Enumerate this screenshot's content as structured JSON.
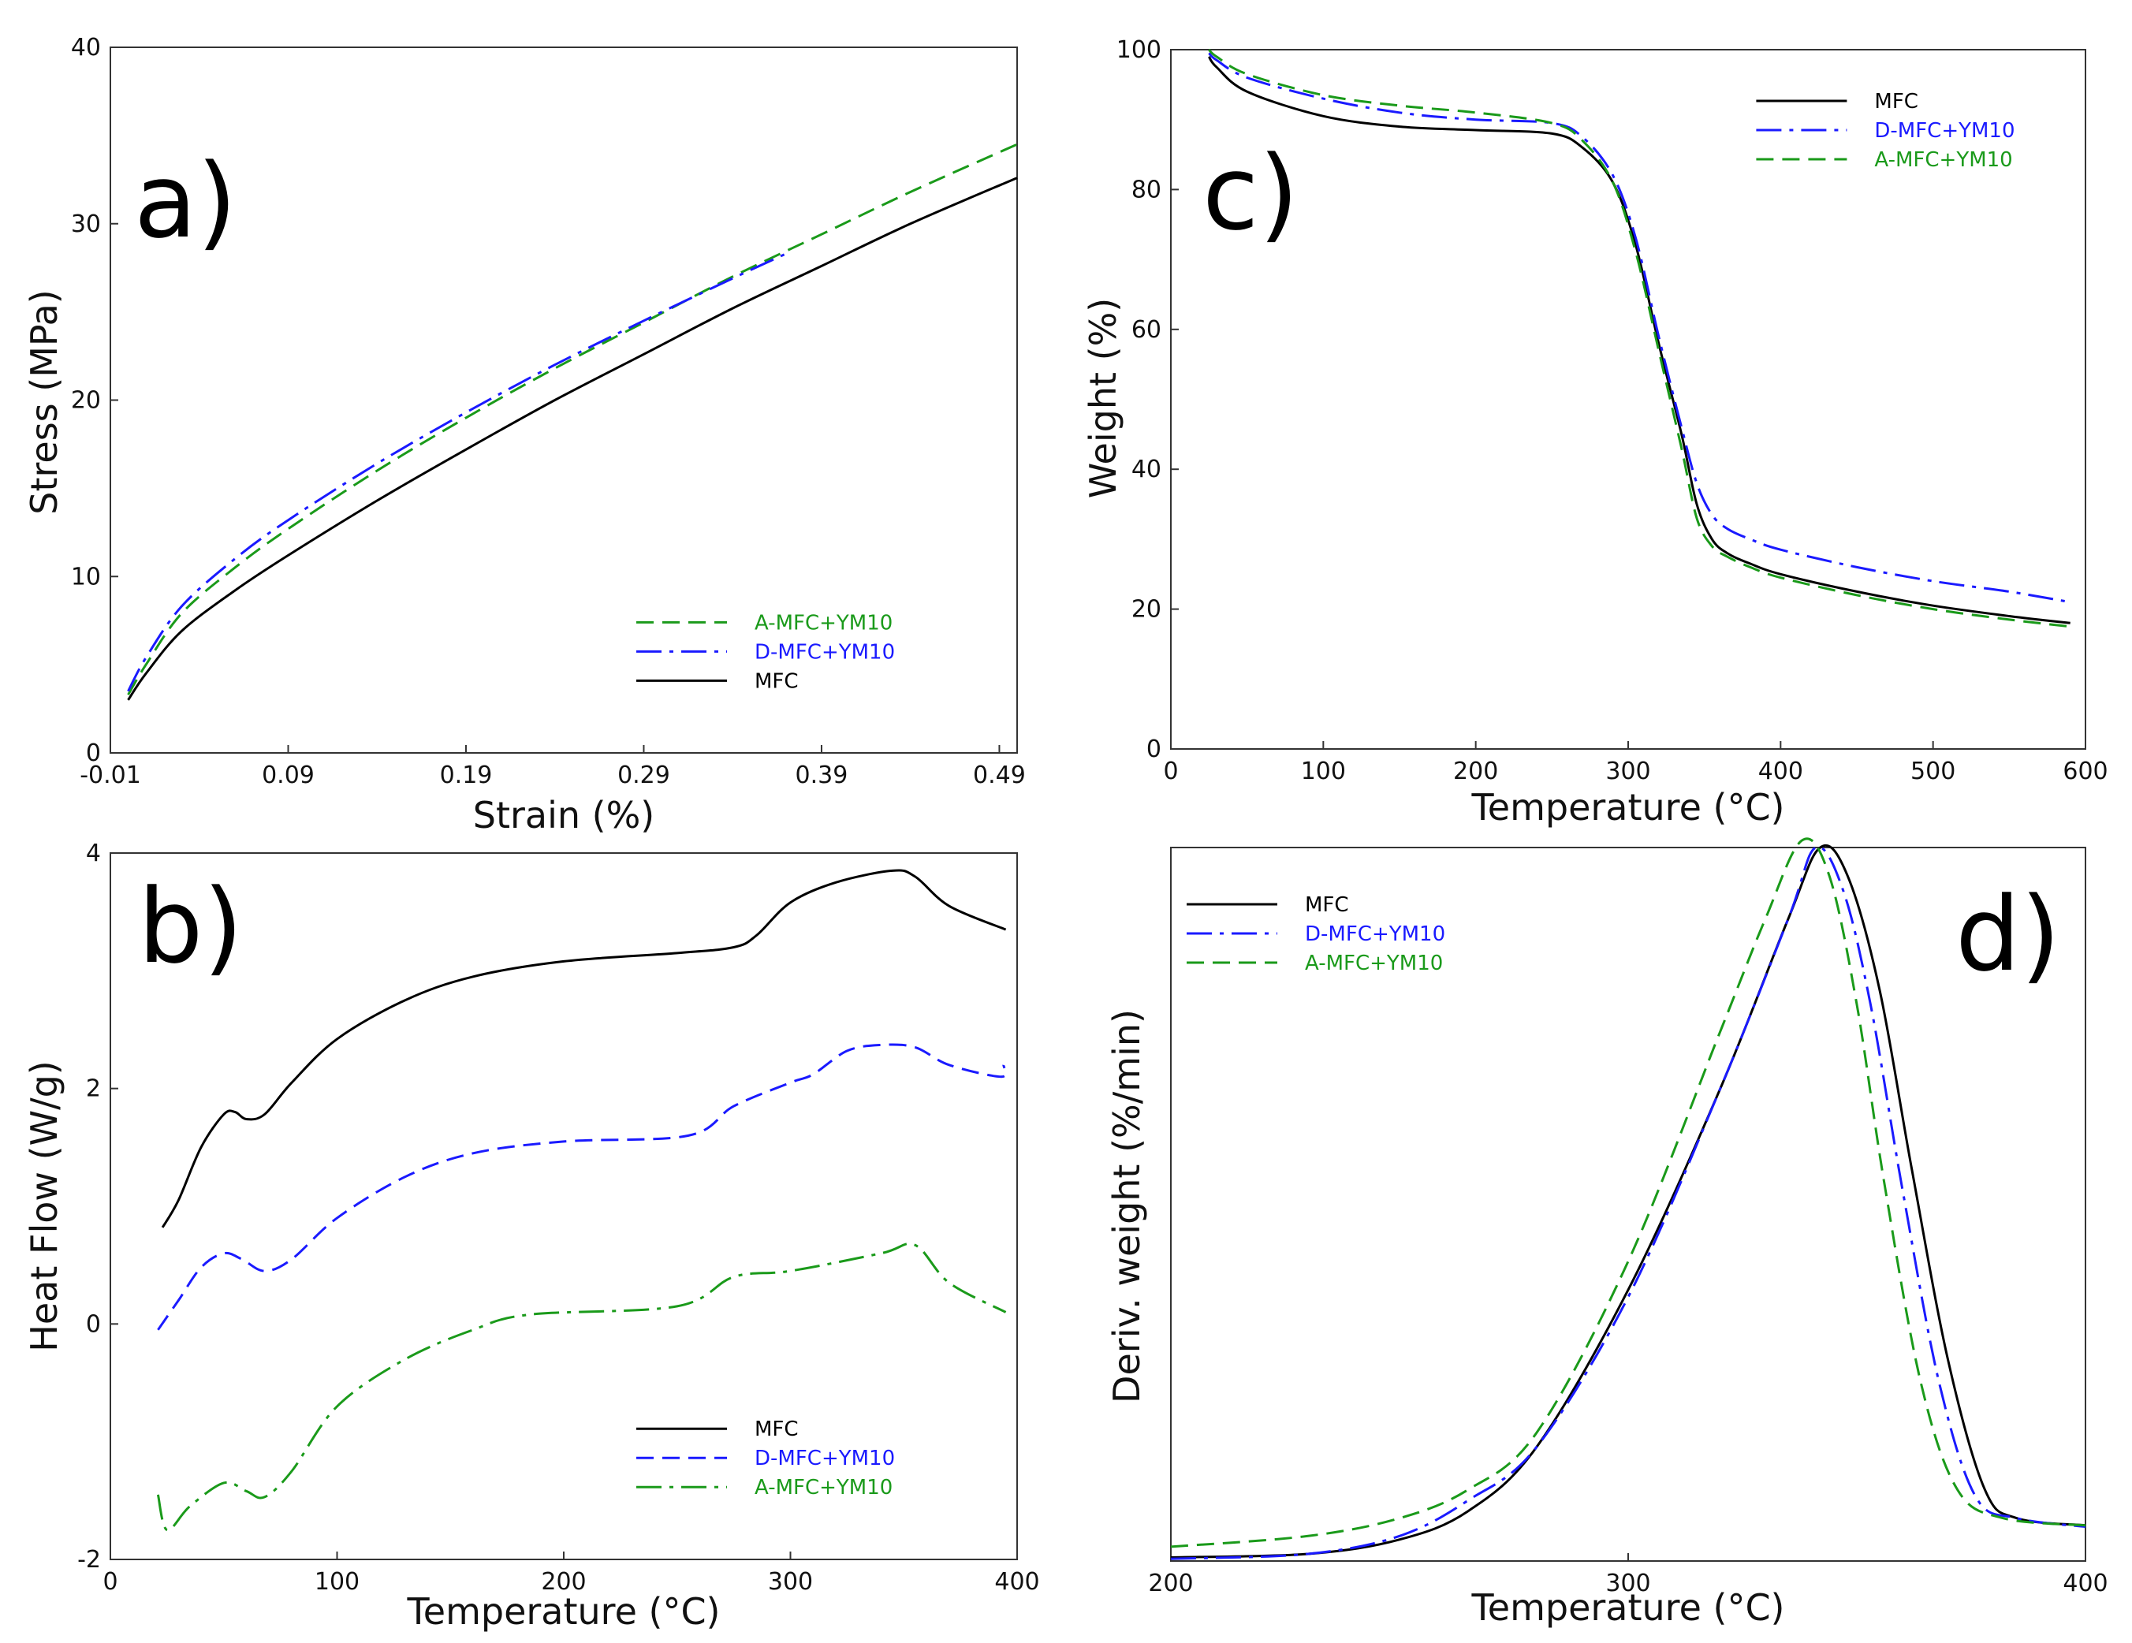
{
  "colors": {
    "mfc": "#000000",
    "dmfc": "#1a1aff",
    "amfc": "#1a9a1a"
  },
  "chart_data": [
    {
      "id": "a",
      "type": "line",
      "panel_label": "a)",
      "xlabel": "Strain (%)",
      "ylabel": "Stress (MPa)",
      "xlim": [
        -0.01,
        0.5
      ],
      "ylim": [
        0,
        40
      ],
      "xticks": [
        -0.01,
        0.09,
        0.19,
        0.29,
        0.39,
        0.49
      ],
      "xtick_labels": [
        "-0.01",
        "0.09",
        "0.19",
        "0.29",
        "0.39",
        "0.49"
      ],
      "yticks": [
        0,
        10,
        20,
        30,
        40
      ],
      "ytick_labels": [
        "0",
        "10",
        "20",
        "30",
        "40"
      ],
      "legend_position": "bottom-right",
      "series": [
        {
          "name": "A-MFC+YM10",
          "key": "amfc",
          "dash": "dashed",
          "x": [
            0,
            0.01,
            0.03,
            0.06,
            0.09,
            0.14,
            0.19,
            0.24,
            0.29,
            0.34,
            0.39,
            0.44,
            0.5
          ],
          "y": [
            3.3,
            5,
            7.9,
            10.5,
            12.7,
            16,
            19,
            21.8,
            24.4,
            27,
            29.4,
            31.8,
            34.5
          ]
        },
        {
          "name": "D-MFC+YM10",
          "key": "dmfc",
          "dash": "dashdot",
          "x": [
            0,
            0.01,
            0.03,
            0.06,
            0.09,
            0.14,
            0.19,
            0.24,
            0.29,
            0.34,
            0.37
          ],
          "y": [
            3.5,
            5.4,
            8.3,
            11,
            13.2,
            16.4,
            19.3,
            22,
            24.5,
            26.9,
            28.3
          ]
        },
        {
          "name": "MFC",
          "key": "mfc",
          "dash": "solid",
          "x": [
            0,
            0.01,
            0.03,
            0.06,
            0.09,
            0.14,
            0.19,
            0.24,
            0.29,
            0.34,
            0.39,
            0.44,
            0.5
          ],
          "y": [
            3,
            4.5,
            6.9,
            9.2,
            11.2,
            14.3,
            17.2,
            20,
            22.6,
            25.2,
            27.6,
            30,
            32.6
          ]
        }
      ]
    },
    {
      "id": "b",
      "type": "line",
      "panel_label": "b)",
      "xlabel": "Temperature (°C)",
      "ylabel": "Heat Flow (W/g)",
      "xlim": [
        0,
        400
      ],
      "ylim": [
        -2,
        4
      ],
      "xticks": [
        0,
        100,
        200,
        300,
        400
      ],
      "xtick_labels": [
        "0",
        "100",
        "200",
        "300",
        "400"
      ],
      "yticks": [
        -2,
        0,
        2,
        4
      ],
      "ytick_labels": [
        "-2",
        "0",
        "2",
        "4"
      ],
      "legend_position": "bottom-right",
      "series": [
        {
          "name": "MFC",
          "key": "mfc",
          "dash": "solid",
          "x": [
            23,
            30,
            40,
            50,
            55,
            60,
            68,
            80,
            100,
            130,
            160,
            200,
            250,
            275,
            285,
            300,
            320,
            345,
            355,
            370,
            395
          ],
          "y": [
            0.82,
            1.05,
            1.5,
            1.78,
            1.8,
            1.74,
            1.78,
            2.05,
            2.42,
            2.75,
            2.95,
            3.08,
            3.15,
            3.2,
            3.3,
            3.58,
            3.75,
            3.85,
            3.8,
            3.55,
            3.35
          ]
        },
        {
          "name": "D-MFC+YM10",
          "key": "dmfc",
          "dash": "dashed",
          "x": [
            21,
            30,
            40,
            50,
            58,
            68,
            80,
            100,
            130,
            160,
            200,
            255,
            275,
            300,
            310,
            325,
            340,
            355,
            370,
            393,
            394
          ],
          "y": [
            -0.05,
            0.2,
            0.48,
            0.6,
            0.55,
            0.45,
            0.55,
            0.9,
            1.25,
            1.45,
            1.55,
            1.6,
            1.85,
            2.05,
            2.12,
            2.32,
            2.37,
            2.35,
            2.2,
            2.1,
            2.2
          ]
        },
        {
          "name": "A-MFC+YM10",
          "key": "amfc",
          "dash": "dashdot",
          "x": [
            21,
            25,
            35,
            50,
            60,
            68,
            80,
            100,
            130,
            160,
            185,
            250,
            275,
            300,
            340,
            355,
            370,
            395
          ],
          "y": [
            -1.45,
            -1.75,
            -1.55,
            -1.35,
            -1.42,
            -1.47,
            -1.25,
            -0.7,
            -0.3,
            -0.05,
            0.08,
            0.15,
            0.4,
            0.45,
            0.6,
            0.67,
            0.35,
            0.1
          ]
        }
      ]
    },
    {
      "id": "c",
      "type": "line",
      "panel_label": "c)",
      "xlabel": "Temperature (°C)",
      "ylabel": "Weight (%)",
      "xlim": [
        0,
        600
      ],
      "ylim": [
        0,
        100
      ],
      "xticks": [
        0,
        100,
        200,
        300,
        400,
        500,
        600
      ],
      "xtick_labels": [
        "0",
        "100",
        "200",
        "300",
        "400",
        "500",
        "600"
      ],
      "yticks": [
        0,
        20,
        40,
        60,
        80,
        100
      ],
      "ytick_labels": [
        "0",
        "20",
        "40",
        "60",
        "80",
        "100"
      ],
      "legend_position": "top-right",
      "series": [
        {
          "name": "MFC",
          "key": "mfc",
          "dash": "solid",
          "x": [
            25,
            30,
            50,
            100,
            150,
            200,
            250,
            270,
            290,
            305,
            320,
            335,
            345,
            355,
            365,
            380,
            400,
            450,
            500,
            550,
            590
          ],
          "y": [
            99,
            97.5,
            94,
            90.5,
            89,
            88.5,
            88,
            86,
            81,
            72,
            58,
            45,
            35,
            30,
            28,
            26.5,
            25,
            22.5,
            20.5,
            19,
            18
          ]
        },
        {
          "name": "D-MFC+YM10",
          "key": "dmfc",
          "dash": "dashdot",
          "x": [
            25,
            30,
            50,
            100,
            150,
            200,
            250,
            270,
            290,
            305,
            320,
            335,
            345,
            355,
            365,
            380,
            400,
            450,
            500,
            550,
            590
          ],
          "y": [
            99.5,
            98.5,
            96,
            93,
            91,
            90,
            89.5,
            87.5,
            82,
            73,
            59,
            46,
            38,
            33.5,
            31.5,
            30,
            28.5,
            26,
            24,
            22.5,
            21
          ]
        },
        {
          "name": "A-MFC+YM10",
          "key": "amfc",
          "dash": "dashed",
          "x": [
            25,
            30,
            50,
            100,
            150,
            200,
            250,
            270,
            290,
            305,
            320,
            335,
            345,
            355,
            365,
            380,
            400,
            450,
            500,
            550,
            590
          ],
          "y": [
            100,
            99,
            96.5,
            93.5,
            92,
            91,
            89.5,
            87,
            81,
            71,
            57,
            43,
            33,
            29,
            27.5,
            26,
            24.5,
            22,
            20,
            18.5,
            17.5
          ]
        }
      ]
    },
    {
      "id": "d",
      "type": "line",
      "panel_label": "d)",
      "xlabel": "Temperature (°C)",
      "ylabel": "Deriv. weight (%/min)",
      "xlim": [
        200,
        400
      ],
      "ylim": [
        0,
        100
      ],
      "xticks": [
        200,
        300,
        400
      ],
      "xtick_labels": [
        "200",
        "300",
        "400"
      ],
      "yticks": [],
      "ytick_labels": [],
      "legend_position": "top-left",
      "series": [
        {
          "name": "MFC",
          "key": "mfc",
          "dash": "solid",
          "x": [
            200,
            230,
            250,
            265,
            280,
            300,
            320,
            335,
            342,
            348,
            355,
            362,
            370,
            378,
            385,
            400
          ],
          "y": [
            0.5,
            1,
            3,
            7,
            16,
            38,
            66,
            90,
            100,
            96,
            80,
            55,
            28,
            10,
            6,
            5
          ]
        },
        {
          "name": "D-MFC+YM10",
          "key": "dmfc",
          "dash": "dashdot",
          "x": [
            200,
            230,
            250,
            265,
            280,
            300,
            320,
            335,
            341,
            347,
            353,
            360,
            368,
            376,
            385,
            400
          ],
          "y": [
            0.3,
            1,
            3.5,
            8.5,
            16,
            37,
            66,
            90,
            100,
            94,
            78,
            52,
            25,
            9,
            6,
            4.8
          ]
        },
        {
          "name": "A-MFC+YM10",
          "key": "amfc",
          "dash": "dashed",
          "x": [
            200,
            230,
            250,
            265,
            280,
            300,
            320,
            330,
            338,
            344,
            350,
            356,
            364,
            372,
            382,
            400
          ],
          "y": [
            2,
            3.5,
            6,
            10,
            18,
            42,
            74,
            90,
            101,
            96,
            78,
            53,
            25,
            10,
            6,
            5
          ]
        }
      ]
    }
  ]
}
